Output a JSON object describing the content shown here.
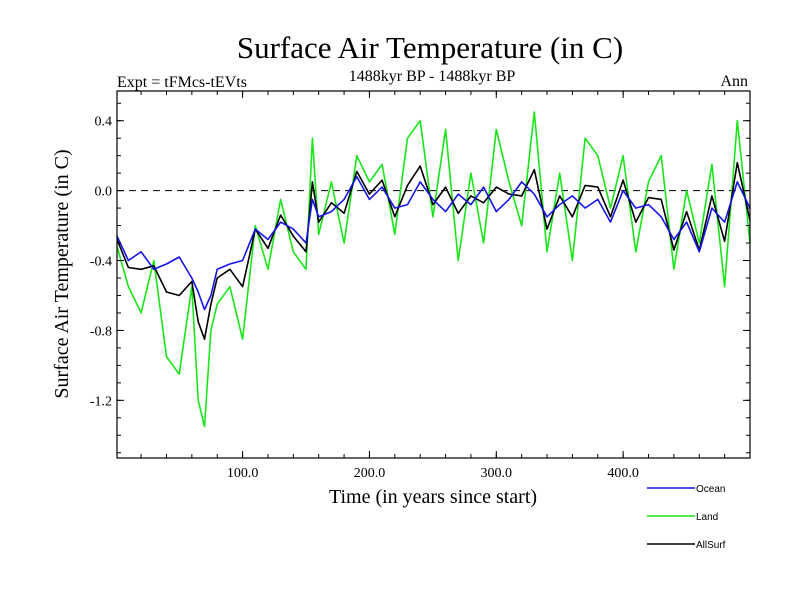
{
  "chart_data": {
    "type": "line",
    "title": "Surface Air Temperature (in C)",
    "subtitle_left": "Expt = tFMcs-tEVts",
    "subtitle_center": "1488kyr BP - 1488kyr BP",
    "subtitle_right": "Ann",
    "xlabel": "Time (in years since start)",
    "ylabel": "Surface Air Temperature (in C)",
    "xlim": [
      1,
      500
    ],
    "ylim": [
      -1.53,
      0.57
    ],
    "xticks": [
      100,
      200,
      300,
      400
    ],
    "xtick_labels": [
      "100.0",
      "200.0",
      "300.0",
      "400.0"
    ],
    "yticks": [
      0.4,
      0.0,
      -0.4,
      -0.8,
      -1.2
    ],
    "ytick_labels": [
      "0.4",
      "0.0",
      "-0.4",
      "-0.8",
      "-1.2"
    ],
    "reference_line": 0.0,
    "x": [
      1,
      10,
      20,
      30,
      40,
      50,
      60,
      65,
      70,
      75,
      80,
      90,
      100,
      110,
      120,
      130,
      140,
      150,
      155,
      160,
      170,
      180,
      190,
      200,
      210,
      220,
      230,
      240,
      250,
      260,
      270,
      280,
      290,
      300,
      310,
      320,
      330,
      340,
      350,
      360,
      370,
      380,
      390,
      400,
      410,
      420,
      430,
      440,
      450,
      460,
      470,
      480,
      490,
      500
    ],
    "series": [
      {
        "name": "Ocean",
        "color": "#1515e6",
        "values": [
          -0.26,
          -0.4,
          -0.35,
          -0.45,
          -0.42,
          -0.38,
          -0.5,
          -0.58,
          -0.68,
          -0.6,
          -0.45,
          -0.42,
          -0.4,
          -0.22,
          -0.28,
          -0.18,
          -0.22,
          -0.3,
          -0.05,
          -0.15,
          -0.12,
          -0.05,
          0.08,
          -0.05,
          0.02,
          -0.1,
          -0.08,
          0.05,
          -0.05,
          -0.12,
          -0.02,
          -0.08,
          0.02,
          -0.12,
          -0.05,
          0.05,
          -0.02,
          -0.15,
          -0.08,
          -0.03,
          -0.1,
          -0.05,
          -0.18,
          0.0,
          -0.1,
          -0.08,
          -0.15,
          -0.28,
          -0.18,
          -0.35,
          -0.1,
          -0.18,
          0.05,
          -0.1
        ]
      },
      {
        "name": "Land",
        "color": "#19e619",
        "values": [
          -0.32,
          -0.55,
          -0.7,
          -0.4,
          -0.95,
          -1.05,
          -0.55,
          -1.2,
          -1.35,
          -0.8,
          -0.65,
          -0.55,
          -0.85,
          -0.2,
          -0.45,
          -0.05,
          -0.35,
          -0.45,
          0.3,
          -0.25,
          0.05,
          -0.3,
          0.2,
          0.05,
          0.15,
          -0.25,
          0.3,
          0.4,
          -0.15,
          0.35,
          -0.4,
          0.1,
          -0.3,
          0.35,
          0.05,
          -0.2,
          0.45,
          -0.35,
          0.1,
          -0.4,
          0.3,
          0.2,
          -0.1,
          0.2,
          -0.35,
          0.05,
          0.2,
          -0.45,
          0.0,
          -0.3,
          0.15,
          -0.55,
          0.4,
          -0.3
        ]
      },
      {
        "name": "AllSurf",
        "color": "#000000",
        "values": [
          -0.28,
          -0.44,
          -0.45,
          -0.43,
          -0.58,
          -0.6,
          -0.52,
          -0.75,
          -0.85,
          -0.65,
          -0.5,
          -0.45,
          -0.55,
          -0.22,
          -0.33,
          -0.14,
          -0.26,
          -0.35,
          0.05,
          -0.18,
          -0.07,
          -0.13,
          0.11,
          -0.02,
          0.06,
          -0.15,
          0.03,
          0.14,
          -0.08,
          0.02,
          -0.13,
          -0.03,
          -0.07,
          0.02,
          -0.02,
          -0.03,
          0.12,
          -0.22,
          -0.03,
          -0.15,
          0.03,
          0.02,
          -0.15,
          0.06,
          -0.18,
          -0.04,
          -0.05,
          -0.34,
          -0.12,
          -0.34,
          -0.03,
          -0.29,
          0.16,
          -0.17
        ]
      }
    ],
    "legend": [
      "Ocean",
      "Land",
      "AllSurf"
    ],
    "legend_position": "bottom-right"
  }
}
